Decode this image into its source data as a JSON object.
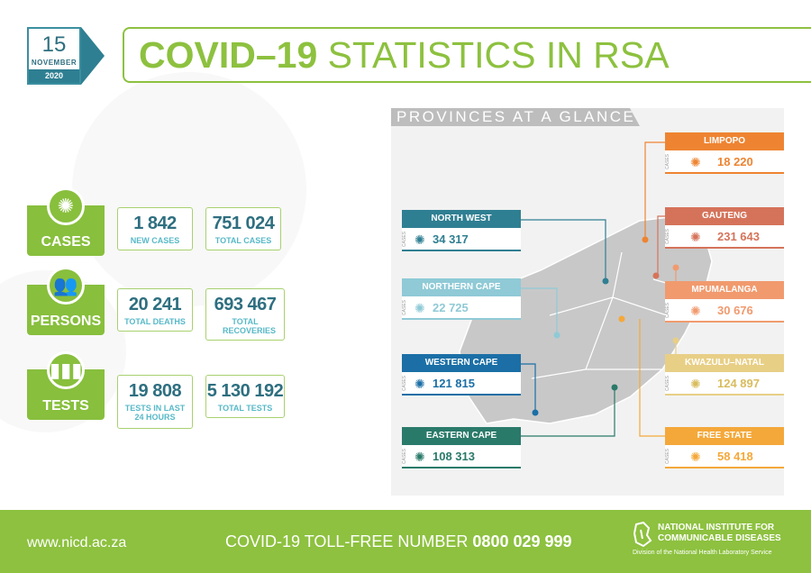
{
  "date": {
    "day": "15",
    "month": "NOVEMBER",
    "year": "2020"
  },
  "title": {
    "bold": "COVID–19",
    "rest": "STATISTICS IN RSA"
  },
  "stats": {
    "cases": {
      "label": "CASES",
      "new_cases": "1 842",
      "new_cases_caption": "NEW CASES",
      "total_cases": "751 024",
      "total_cases_caption": "TOTAL CASES"
    },
    "persons": {
      "label": "PERSONS",
      "total_deaths": "20 241",
      "total_deaths_caption": "TOTAL DEATHS",
      "total_recoveries": "693 467",
      "total_recoveries_caption": "TOTAL RECOVERIES"
    },
    "tests": {
      "label": "TESTS",
      "tests_24h": "19 808",
      "tests_24h_caption": "TESTS IN LAST 24 HOURS",
      "total_tests": "5 130 192",
      "total_tests_caption": "TOTAL TESTS"
    }
  },
  "provinces": {
    "heading": "PROVINCES AT A GLANCE",
    "cases_label": "CASES",
    "items": [
      {
        "name": "NORTH WEST",
        "value": "34 317",
        "color": "#2f7f92"
      },
      {
        "name": "NORTHERN CAPE",
        "value": "22 725",
        "color": "#8fcad6"
      },
      {
        "name": "WESTERN CAPE",
        "value": "121 815",
        "color": "#1b6fa6"
      },
      {
        "name": "EASTERN CAPE",
        "value": "108 313",
        "color": "#2a7a6a"
      },
      {
        "name": "LIMPOPO",
        "value": "18 220",
        "color": "#ee8431"
      },
      {
        "name": "GAUTENG",
        "value": "231 643",
        "color": "#d5735a"
      },
      {
        "name": "MPUMALANGA",
        "value": "30 676",
        "color": "#f19a6e"
      },
      {
        "name": "KWAZULU–NATAL",
        "value": "124 897",
        "color": "#e8cf86"
      },
      {
        "name": "FREE STATE",
        "value": "58 418",
        "color": "#f4a83a"
      }
    ]
  },
  "footer": {
    "url": "www.nicd.ac.za",
    "tollfree_label": "COVID-19 TOLL-FREE NUMBER",
    "tollfree_number": "0800 029 999",
    "org_line1": "NATIONAL INSTITUTE FOR",
    "org_line2": "COMMUNICABLE DISEASES",
    "org_sub": "Division of the National Health Laboratory Service"
  }
}
